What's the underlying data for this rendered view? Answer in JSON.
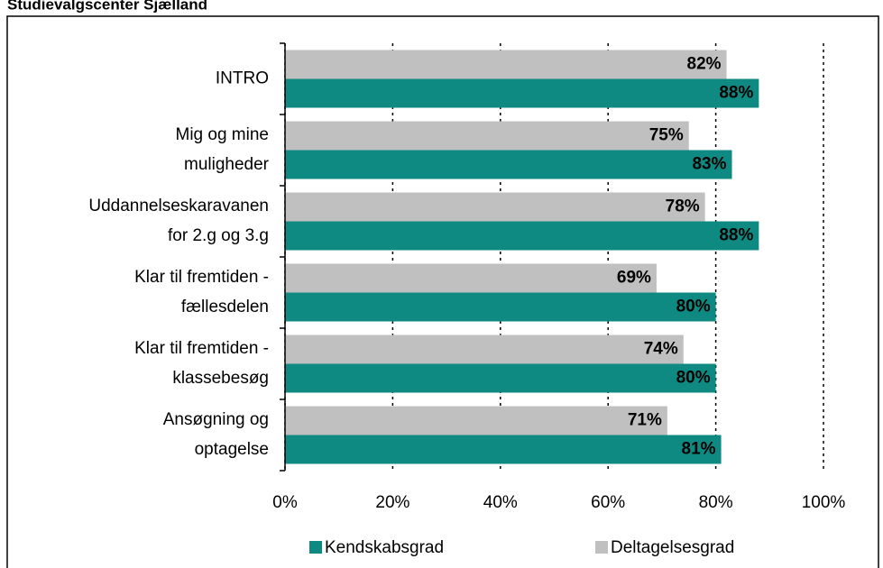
{
  "chart_data": {
    "type": "hbar",
    "title": "Studievalgscenter Sjælland",
    "categories": [
      [
        "INTRO"
      ],
      [
        "Mig og mine",
        "muligheder"
      ],
      [
        "Uddannelseskaravanen",
        "for 2.g og 3.g"
      ],
      [
        "Klar til fremtiden -",
        "fællesdelen"
      ],
      [
        "Klar til fremtiden -",
        "klassebesøg"
      ],
      [
        "Ansøgning og",
        "optagelse"
      ]
    ],
    "series": [
      {
        "name": "Kendskabsgrad",
        "color": "#0f8a82",
        "label_color": "#ffffff",
        "values": [
          88,
          83,
          88,
          80,
          80,
          81
        ],
        "value_labels": [
          "88%",
          "83%",
          "88%",
          "80%",
          "80%",
          "81%"
        ]
      },
      {
        "name": "Deltagelsesgrad",
        "color": "#c0c0c0",
        "label_color": "#000000",
        "values": [
          82,
          75,
          78,
          69,
          74,
          71
        ],
        "value_labels": [
          "82%",
          "75%",
          "78%",
          "69%",
          "74%",
          "71%"
        ]
      }
    ],
    "xlim": [
      0,
      100
    ],
    "xticks": [
      {
        "value": 0,
        "label": "0%"
      },
      {
        "value": 20,
        "label": "20%"
      },
      {
        "value": 40,
        "label": "40%"
      },
      {
        "value": 60,
        "label": "60%"
      },
      {
        "value": 80,
        "label": "80%"
      },
      {
        "value": 100,
        "label": "100%"
      }
    ],
    "grid": true
  }
}
